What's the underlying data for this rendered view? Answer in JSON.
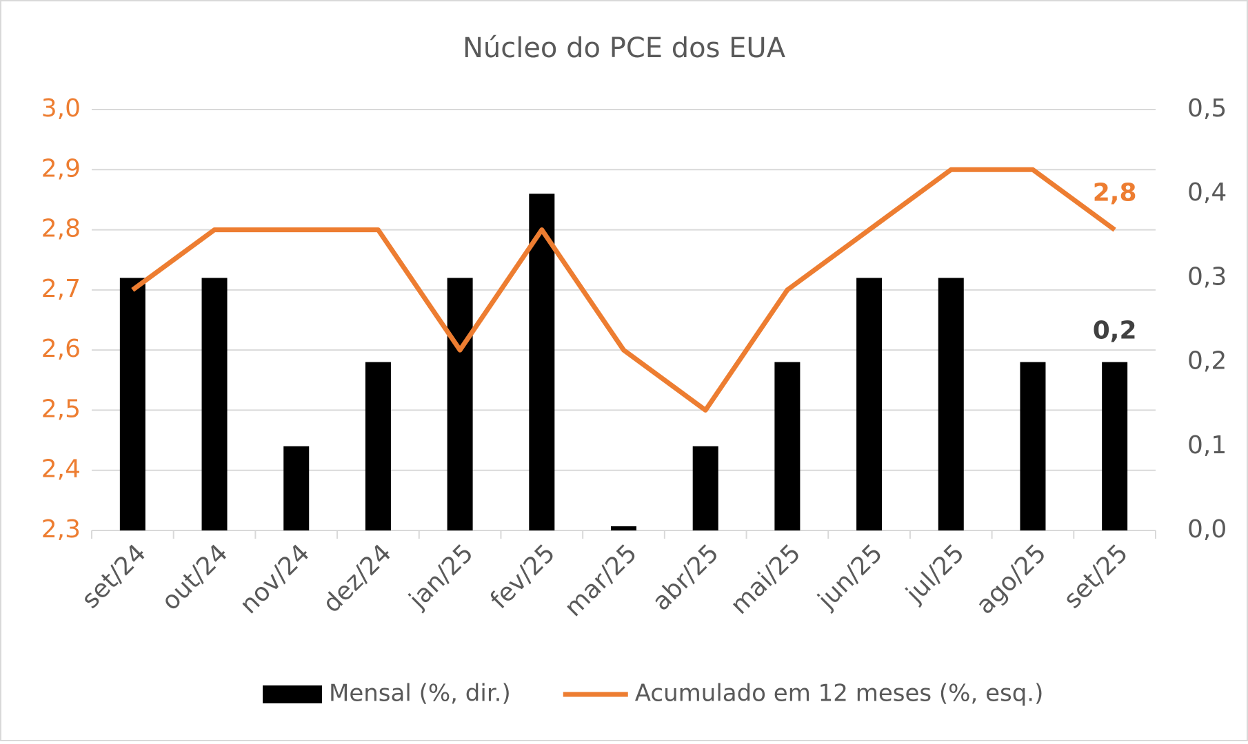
{
  "chart_data": {
    "type": "combo",
    "title": "Núcleo do PCE dos EUA",
    "categories": [
      "set/24",
      "out/24",
      "nov/24",
      "dez/24",
      "jan/25",
      "fev/25",
      "mar/25",
      "abr/25",
      "mai/25",
      "jun/25",
      "jul/25",
      "ago/25",
      "set/25"
    ],
    "series": [
      {
        "name": "Mensal (%, dir.)",
        "type": "bar",
        "axis": "y2",
        "color": "#000000",
        "values": [
          0.3,
          0.3,
          0.1,
          0.2,
          0.3,
          0.4,
          0.005,
          0.1,
          0.2,
          0.3,
          0.3,
          0.2,
          0.2
        ],
        "value_labels": [
          null,
          null,
          null,
          null,
          null,
          null,
          null,
          null,
          null,
          null,
          null,
          null,
          "0,2"
        ]
      },
      {
        "name": "Acumulado em 12 meses (%, esq.)",
        "type": "line",
        "axis": "y",
        "color": "#ed7d31",
        "values": [
          2.7,
          2.8,
          2.8,
          2.8,
          2.6,
          2.8,
          2.6,
          2.5,
          2.7,
          2.8,
          2.9,
          2.9,
          2.8
        ],
        "value_labels": [
          null,
          null,
          null,
          null,
          null,
          null,
          null,
          null,
          null,
          null,
          null,
          null,
          "2,8"
        ]
      }
    ],
    "ylim": [
      2.3,
      3.0
    ],
    "yticks": [
      {
        "value": 2.3,
        "label": "2,3"
      },
      {
        "value": 2.4,
        "label": "2,4"
      },
      {
        "value": 2.5,
        "label": "2,5"
      },
      {
        "value": 2.6,
        "label": "2,6"
      },
      {
        "value": 2.7,
        "label": "2,7"
      },
      {
        "value": 2.8,
        "label": "2,8"
      },
      {
        "value": 2.9,
        "label": "2,9"
      },
      {
        "value": 3.0,
        "label": "3,0"
      }
    ],
    "y2lim": [
      0.0,
      0.5
    ],
    "y2ticks": [
      {
        "value": 0.0,
        "label": "0,0"
      },
      {
        "value": 0.1,
        "label": "0,1"
      },
      {
        "value": 0.2,
        "label": "0,2"
      },
      {
        "value": 0.3,
        "label": "0,3"
      },
      {
        "value": 0.4,
        "label": "0,4"
      },
      {
        "value": 0.5,
        "label": "0,5"
      }
    ],
    "ytick_color": "#ed7d31",
    "y2tick_color": "#595959",
    "grid": true,
    "legend": "bottom"
  }
}
